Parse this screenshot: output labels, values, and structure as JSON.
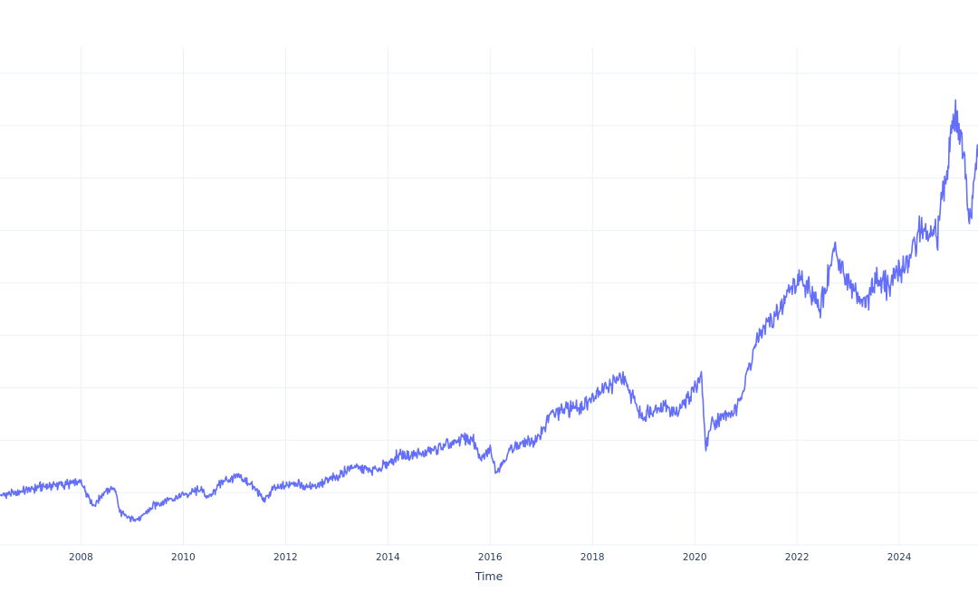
{
  "chart_data": {
    "type": "line",
    "title": "",
    "xlabel": "Time",
    "ylabel": "",
    "grid": true,
    "legend": "none",
    "xlim": [
      "2006-06-01",
      "2025-07-15"
    ],
    "ylim": [
      0,
      9.5
    ],
    "x_ticks": [
      "2008",
      "2010",
      "2012",
      "2014",
      "2016",
      "2018",
      "2020",
      "2022",
      "2024"
    ],
    "y_gridlines": [
      1,
      2,
      3,
      4,
      5,
      6,
      7,
      8,
      9
    ],
    "series": [
      {
        "color": "#636efa",
        "x": [
          "2006-06-01",
          "2006-10-01",
          "2007-03-01",
          "2007-09-01",
          "2008-01-01",
          "2008-04-01",
          "2008-06-15",
          "2008-09-01",
          "2008-10-01",
          "2008-12-01",
          "2009-03-01",
          "2009-06-01",
          "2009-09-01",
          "2010-01-01",
          "2010-05-01",
          "2010-07-01",
          "2010-10-01",
          "2011-02-01",
          "2011-05-01",
          "2011-08-01",
          "2011-10-01",
          "2012-03-01",
          "2012-06-01",
          "2012-09-01",
          "2013-01-01",
          "2013-05-01",
          "2013-09-01",
          "2014-01-01",
          "2014-04-01",
          "2014-06-01",
          "2014-10-01",
          "2015-01-01",
          "2015-05-01",
          "2015-07-01",
          "2015-09-01",
          "2015-11-01",
          "2016-01-01",
          "2016-02-15",
          "2016-06-01",
          "2016-09-01",
          "2016-12-01",
          "2017-03-01",
          "2017-07-01",
          "2017-12-01",
          "2018-02-01",
          "2018-05-01",
          "2018-08-01",
          "2018-10-01",
          "2018-12-15",
          "2019-03-01",
          "2019-06-01",
          "2019-09-01",
          "2019-11-01",
          "2020-01-15",
          "2020-02-15",
          "2020-03-20",
          "2020-05-01",
          "2020-08-01",
          "2020-11-01",
          "2021-01-01",
          "2021-04-01",
          "2021-07-01",
          "2021-09-01",
          "2021-11-01",
          "2022-01-01",
          "2022-03-15",
          "2022-06-15",
          "2022-08-15",
          "2022-10-01",
          "2022-12-15",
          "2023-03-01",
          "2023-05-01",
          "2023-08-01",
          "2023-10-15",
          "2024-01-01",
          "2024-04-01",
          "2024-06-01",
          "2024-08-01",
          "2024-10-01",
          "2024-12-15",
          "2025-01-15",
          "2025-04-01",
          "2025-05-15",
          "2025-07-15"
        ],
        "y": [
          0.95,
          1.0,
          1.1,
          1.15,
          1.2,
          0.75,
          1.0,
          1.1,
          0.65,
          0.5,
          0.5,
          0.75,
          0.85,
          0.95,
          1.05,
          0.9,
          1.2,
          1.3,
          1.15,
          0.85,
          1.05,
          1.2,
          1.1,
          1.15,
          1.3,
          1.5,
          1.4,
          1.55,
          1.75,
          1.7,
          1.75,
          1.85,
          1.95,
          2.05,
          2.0,
          1.6,
          1.85,
          1.4,
          1.85,
          1.95,
          2.0,
          2.45,
          2.6,
          2.7,
          2.95,
          3.05,
          3.2,
          2.9,
          2.45,
          2.6,
          2.65,
          2.5,
          2.75,
          3.05,
          3.3,
          1.85,
          2.35,
          2.45,
          2.6,
          3.2,
          4.0,
          4.3,
          4.45,
          4.85,
          5.05,
          5.0,
          4.45,
          5.25,
          5.65,
          5.0,
          4.75,
          4.65,
          5.15,
          4.9,
          5.2,
          5.55,
          6.1,
          5.75,
          6.0,
          7.3,
          8.3,
          7.5,
          6.1,
          7.6
        ]
      }
    ]
  }
}
